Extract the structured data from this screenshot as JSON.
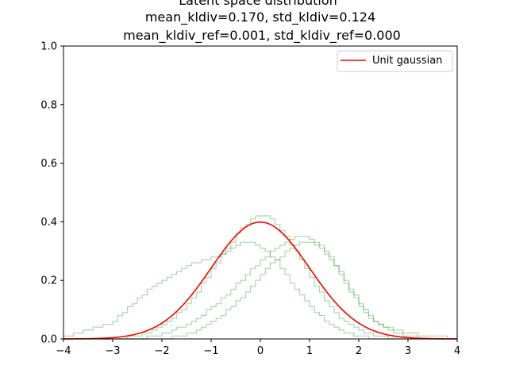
{
  "chart_data": {
    "type": "histogram-line",
    "title_lines": [
      "Latent space distribution",
      "mean_kldiv=0.170, std_kldiv=0.124",
      "mean_kldiv_ref=0.001, std_kldiv_ref=0.000"
    ],
    "xlabel": "",
    "ylabel": "",
    "xlim": [
      -4,
      4
    ],
    "ylim": [
      0,
      1.0
    ],
    "x_ticks": [
      -4,
      -3,
      -2,
      -1,
      0,
      1,
      2,
      3,
      4
    ],
    "x_tick_labels": [
      "−4",
      "−3",
      "−2",
      "−1",
      "0",
      "1",
      "2",
      "3",
      "4"
    ],
    "y_ticks": [
      0,
      0.2,
      0.4,
      0.6,
      0.8,
      1.0
    ],
    "y_tick_labels": [
      "0.0",
      "0.2",
      "0.4",
      "0.6",
      "0.8",
      "1.0"
    ],
    "grid": false,
    "legend": {
      "position": "top-right",
      "entries": [
        "Unit gaussian"
      ]
    },
    "line_series": {
      "name": "Unit gaussian",
      "color": "#ff0000",
      "function": "standard normal pdf",
      "x_range": [
        -4,
        4
      ]
    },
    "histograms": {
      "color": "#2ca02c",
      "alpha": 0.4,
      "bin_edges": {
        "start": -4.0,
        "step": 0.1,
        "count": 81
      },
      "series": [
        {
          "density": [
            0.01,
            0.01,
            0.02,
            0.02,
            0.03,
            0.03,
            0.04,
            0.04,
            0.05,
            0.05,
            0.06,
            0.08,
            0.09,
            0.11,
            0.12,
            0.14,
            0.15,
            0.17,
            0.18,
            0.19,
            0.2,
            0.21,
            0.22,
            0.23,
            0.24,
            0.25,
            0.26,
            0.26,
            0.27,
            0.27,
            0.28,
            0.28,
            0.29,
            0.3,
            0.31,
            0.32,
            0.33,
            0.33,
            0.33,
            0.32,
            0.31,
            0.3,
            0.28,
            0.27,
            0.24,
            0.22,
            0.19,
            0.17,
            0.15,
            0.13,
            0.11,
            0.09,
            0.08,
            0.06,
            0.05,
            0.04,
            0.03,
            0.02,
            0.02,
            0.01,
            0.01,
            0.01,
            0.0,
            0.0,
            0.0,
            0.0,
            0.0,
            0.0,
            0.0,
            0.0,
            0.0,
            0.0,
            0.0,
            0.0,
            0.0,
            0.0,
            0.0,
            0.0,
            0.0,
            0.0
          ]
        },
        {
          "density": [
            0.0,
            0.0,
            0.0,
            0.0,
            0.0,
            0.0,
            0.0,
            0.0,
            0.0,
            0.0,
            0.0,
            0.0,
            0.0,
            0.01,
            0.01,
            0.01,
            0.02,
            0.02,
            0.03,
            0.04,
            0.05,
            0.06,
            0.07,
            0.09,
            0.1,
            0.12,
            0.14,
            0.16,
            0.19,
            0.21,
            0.24,
            0.26,
            0.29,
            0.31,
            0.33,
            0.36,
            0.38,
            0.39,
            0.41,
            0.42,
            0.42,
            0.42,
            0.41,
            0.39,
            0.37,
            0.35,
            0.32,
            0.3,
            0.27,
            0.24,
            0.21,
            0.18,
            0.16,
            0.13,
            0.11,
            0.09,
            0.07,
            0.06,
            0.05,
            0.04,
            0.03,
            0.02,
            0.02,
            0.01,
            0.01,
            0.01,
            0.0,
            0.0,
            0.0,
            0.0,
            0.0,
            0.0,
            0.0,
            0.0,
            0.0,
            0.0,
            0.0,
            0.0,
            0.0,
            0.0
          ]
        },
        {
          "density": [
            0.0,
            0.0,
            0.0,
            0.0,
            0.0,
            0.0,
            0.0,
            0.0,
            0.0,
            0.0,
            0.0,
            0.0,
            0.0,
            0.0,
            0.0,
            0.0,
            0.0,
            0.01,
            0.01,
            0.01,
            0.02,
            0.02,
            0.03,
            0.04,
            0.04,
            0.05,
            0.06,
            0.07,
            0.08,
            0.1,
            0.11,
            0.12,
            0.14,
            0.15,
            0.17,
            0.19,
            0.2,
            0.22,
            0.24,
            0.25,
            0.27,
            0.28,
            0.3,
            0.31,
            0.32,
            0.33,
            0.34,
            0.35,
            0.35,
            0.35,
            0.34,
            0.33,
            0.32,
            0.3,
            0.28,
            0.25,
            0.23,
            0.2,
            0.17,
            0.15,
            0.12,
            0.1,
            0.08,
            0.06,
            0.05,
            0.04,
            0.03,
            0.02,
            0.02,
            0.01,
            0.01,
            0.01,
            0.0,
            0.0,
            0.0,
            0.0,
            0.0,
            0.0,
            0.0,
            0.0
          ]
        },
        {
          "density": [
            0.0,
            0.0,
            0.0,
            0.0,
            0.0,
            0.0,
            0.0,
            0.0,
            0.0,
            0.0,
            0.0,
            0.0,
            0.0,
            0.0,
            0.0,
            0.0,
            0.0,
            0.0,
            0.0,
            0.0,
            0.0,
            0.0,
            0.01,
            0.01,
            0.01,
            0.02,
            0.02,
            0.03,
            0.04,
            0.05,
            0.06,
            0.07,
            0.08,
            0.1,
            0.11,
            0.13,
            0.14,
            0.16,
            0.18,
            0.2,
            0.22,
            0.24,
            0.26,
            0.27,
            0.28,
            0.3,
            0.31,
            0.32,
            0.33,
            0.33,
            0.33,
            0.32,
            0.31,
            0.29,
            0.27,
            0.25,
            0.22,
            0.19,
            0.16,
            0.14,
            0.11,
            0.09,
            0.07,
            0.06,
            0.05,
            0.04,
            0.04,
            0.03,
            0.03,
            0.02,
            0.02,
            0.02,
            0.01,
            0.01,
            0.01,
            0.01,
            0.01,
            0.01,
            0.0,
            0.0
          ]
        }
      ]
    }
  }
}
